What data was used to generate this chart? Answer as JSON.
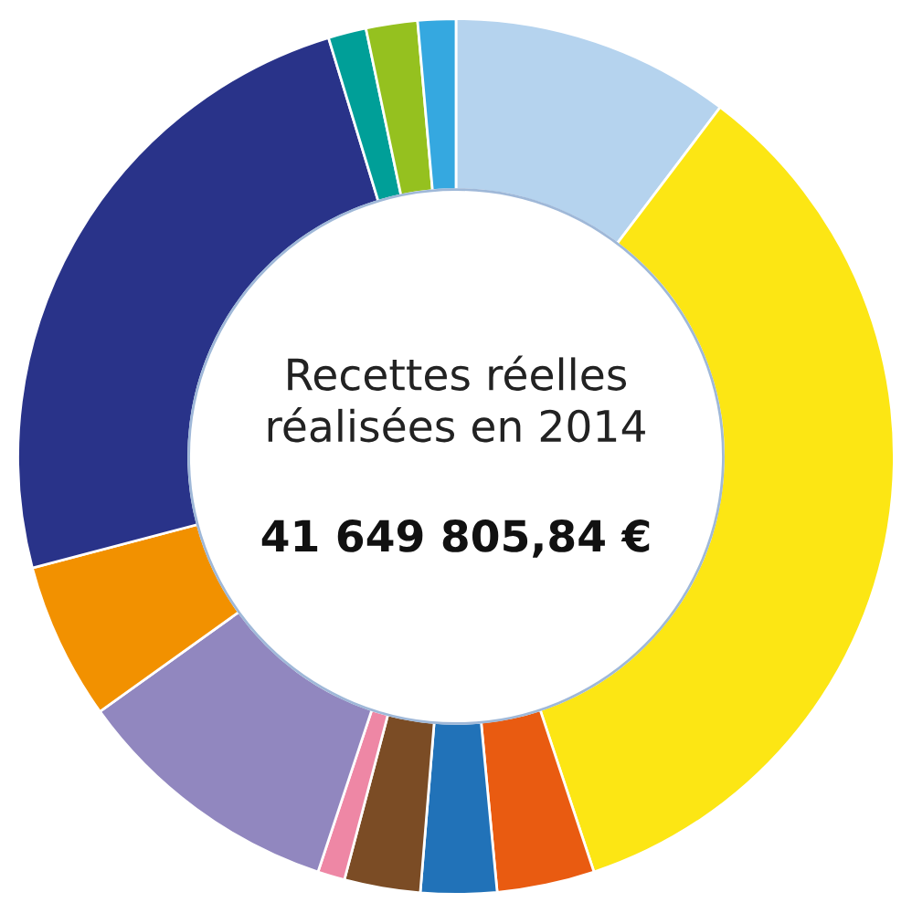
{
  "chart_data": {
    "type": "donut",
    "title": "Recettes réelles\nréalisées en 2014",
    "subtitle": "41 649 805,84 €",
    "categories": [
      null,
      null,
      null,
      null,
      null,
      null,
      null,
      null,
      null,
      null,
      null,
      null
    ],
    "values": [
      10.3,
      34.6,
      3.6,
      2.8,
      2.8,
      1.0,
      10.0,
      5.8,
      24.4,
      1.4,
      1.9,
      1.4
    ],
    "colors": [
      "#b5d3ee",
      "#fce614",
      "#e95b11",
      "#2172b8",
      "#7b4c25",
      "#ee87a5",
      "#9187bf",
      "#f29100",
      "#293389",
      "#009f98",
      "#95c11f",
      "#35a8e0"
    ],
    "legend": false
  }
}
